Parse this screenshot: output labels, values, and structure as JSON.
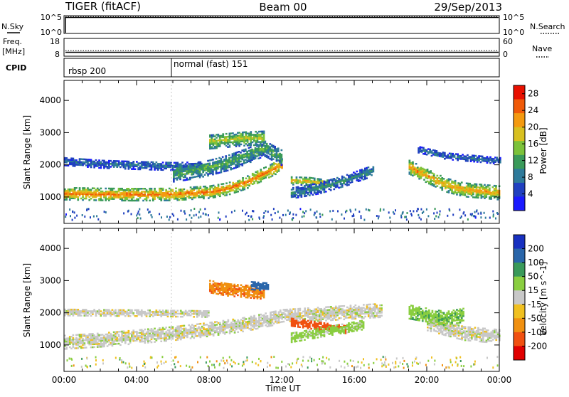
{
  "header": {
    "radar": "TIGER (fitACF)",
    "beam": "Beam 00",
    "date": "29/Sep/2013"
  },
  "strips": {
    "nsky": {
      "label": "N.Sky",
      "ticks": [
        "10^5",
        "10^0"
      ],
      "right_ticks": [
        "10^5",
        "10^0"
      ],
      "right_label": "N.Search"
    },
    "freq": {
      "label_top": "Freq.",
      "label_unit": "[MHz]",
      "ticks": [
        "18",
        "8"
      ],
      "right_ticks": [
        "60",
        "0"
      ],
      "right_label": "Nave"
    },
    "cpid": {
      "label": "CPID",
      "segments": [
        {
          "start": 0,
          "name": "rbsp 200"
        },
        {
          "start": 6,
          "name": "normal (fast) 151"
        }
      ]
    }
  },
  "x_axis": {
    "label": "Time UT",
    "ticks": [
      "00:00",
      "04:00",
      "08:00",
      "12:00",
      "16:00",
      "20:00",
      "00:00"
    ]
  },
  "colors": {
    "power_scale": [
      "#1a1aff",
      "#2040c0",
      "#2e7a9a",
      "#3a9a5a",
      "#7cc23a",
      "#d8c020",
      "#f49a10",
      "#f05a08",
      "#e81000"
    ],
    "velocity_scale": [
      "#1830c0",
      "#2a66aa",
      "#3a9a5a",
      "#8ace40",
      "#c8c8c8",
      "#f0c020",
      "#f09010",
      "#f05010",
      "#e00000"
    ]
  },
  "chart_data": [
    {
      "type": "heatmap",
      "panel": "power",
      "xlabel": "",
      "ylabel": "Slant Range [km]",
      "xlim": [
        0,
        24
      ],
      "ylim": [
        180,
        4600
      ],
      "yticks": [
        "1000",
        "2000",
        "3000",
        "4000"
      ],
      "colorbar": {
        "label": "Power [dB]",
        "ticks": [
          "4",
          "8",
          "12",
          "16",
          "20",
          "24",
          "28"
        ],
        "range": [
          0,
          30
        ]
      },
      "regions": [
        {
          "t": [
            0,
            2,
            4,
            6,
            8,
            9,
            10,
            11,
            12
          ],
          "center": [
            1080,
            1060,
            1050,
            1060,
            1130,
            1230,
            1420,
            1700,
            1980
          ],
          "width": 380,
          "value": 24
        },
        {
          "t": [
            0,
            2,
            4,
            6,
            7.5
          ],
          "center": [
            2080,
            2000,
            1960,
            1930,
            1950
          ],
          "width": 250,
          "value": 8
        },
        {
          "t": [
            6,
            7,
            8,
            9,
            10,
            11,
            12
          ],
          "center": [
            1700,
            1780,
            1900,
            2050,
            2250,
            2500,
            2200
          ],
          "width": 500,
          "value": 13
        },
        {
          "t": [
            8,
            9,
            10,
            11
          ],
          "center": [
            2700,
            2750,
            2800,
            2820
          ],
          "width": 450,
          "value": 17
        },
        {
          "t": [
            12.5,
            13.5,
            14.5
          ],
          "center": [
            1480,
            1460,
            1380
          ],
          "width": 240,
          "value": 20
        },
        {
          "t": [
            12.5,
            14,
            15.5,
            17
          ],
          "center": [
            1100,
            1250,
            1500,
            1800
          ],
          "width": 350,
          "value": 10
        },
        {
          "t": [
            19,
            20,
            21,
            22,
            24
          ],
          "center": [
            1900,
            1620,
            1350,
            1200,
            1100
          ],
          "width": 420,
          "value": 22
        },
        {
          "t": [
            19.5,
            21,
            24
          ],
          "center": [
            2450,
            2250,
            2100
          ],
          "width": 200,
          "value": 8
        }
      ]
    },
    {
      "type": "heatmap",
      "panel": "velocity",
      "xlabel": "Time UT",
      "ylabel": "Slant Range [km]",
      "xlim": [
        0,
        24
      ],
      "ylim": [
        180,
        4600
      ],
      "yticks": [
        "1000",
        "2000",
        "3000",
        "4000"
      ],
      "colorbar": {
        "label": "Velocity [m s^-1]",
        "ticks": [
          "200",
          "100",
          "50",
          "15",
          "-15",
          "-50",
          "-100",
          "-200"
        ],
        "range": [
          -250,
          250
        ]
      },
      "regions": [
        {
          "t": [
            0,
            2,
            4,
            6,
            8,
            10,
            12,
            14,
            16,
            17.5
          ],
          "center": [
            1060,
            1130,
            1230,
            1330,
            1460,
            1620,
            1860,
            1930,
            2000,
            2050
          ],
          "width": 420,
          "value": 0
        },
        {
          "t": [
            0,
            4,
            8
          ],
          "center": [
            2000,
            1980,
            1950
          ],
          "width": 220,
          "value": 0
        },
        {
          "t": [
            20,
            21,
            22,
            24
          ],
          "center": [
            1650,
            1500,
            1350,
            1250
          ],
          "width": 450,
          "value": 0
        },
        {
          "t": [
            8,
            9,
            10,
            11
          ],
          "center": [
            2800,
            2700,
            2650,
            2600
          ],
          "width": 400,
          "value": -90
        },
        {
          "t": [
            10.3,
            11.2
          ],
          "center": [
            2820,
            2780
          ],
          "width": 240,
          "value": 180
        },
        {
          "t": [
            12.5,
            13.5,
            14.5,
            15.5
          ],
          "center": [
            1680,
            1600,
            1520,
            1450
          ],
          "width": 230,
          "value": -160
        },
        {
          "t": [
            12.5,
            14.5,
            16.5
          ],
          "center": [
            1200,
            1400,
            1600
          ],
          "width": 280,
          "value": 30
        },
        {
          "t": [
            19,
            20,
            21,
            22
          ],
          "center": [
            2000,
            1900,
            1800,
            1900
          ],
          "width": 420,
          "value": 40
        }
      ]
    }
  ]
}
